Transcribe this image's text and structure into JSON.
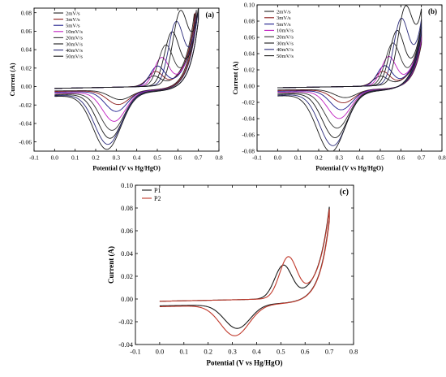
{
  "chart_data": [
    {
      "id": "a",
      "type": "line",
      "panel_label": "(a)",
      "xlabel": "Potential (V vs Hg/HgO)",
      "ylabel": "Current (A)",
      "xlim": [
        -0.1,
        0.8
      ],
      "ylim": [
        -0.07,
        0.085
      ],
      "xticks": [
        "-0.1",
        "0.0",
        "0.1",
        "0.2",
        "0.3",
        "0.4",
        "0.5",
        "0.6",
        "0.7",
        "0.8"
      ],
      "yticks": [
        "-0.06",
        "-0.04",
        "-0.02",
        "0.00",
        "0.02",
        "0.04",
        "0.06",
        "0.08"
      ],
      "grid": false,
      "legend_position": "top-left",
      "series": [
        {
          "name": "2mV/s",
          "color": "#222222",
          "ox_peak": [
            0.48,
            0.011
          ],
          "red_peak": [
            0.32,
            -0.01
          ],
          "end": [
            0.68,
            0.078
          ],
          "anodic_shift": 0.0
        },
        {
          "name": "3mV/s",
          "color": "#8b1a1a",
          "ox_peak": [
            0.49,
            0.016
          ],
          "red_peak": [
            0.31,
            -0.015
          ],
          "end": [
            0.685,
            0.079
          ],
          "anodic_shift": 0.0
        },
        {
          "name": "5mV/s",
          "color": "#1a1a8b",
          "ox_peak": [
            0.5,
            0.022
          ],
          "red_peak": [
            0.3,
            -0.022
          ],
          "end": [
            0.69,
            0.08
          ],
          "anodic_shift": 0.0
        },
        {
          "name": "10mV/s",
          "color": "#c020c0",
          "ox_peak": [
            0.52,
            0.031
          ],
          "red_peak": [
            0.29,
            -0.032
          ],
          "end": [
            0.69,
            0.081
          ],
          "anodic_shift": 0.01
        },
        {
          "name": "20mV/s",
          "color": "#333333",
          "ox_peak": [
            0.54,
            0.044
          ],
          "red_peak": [
            0.28,
            -0.041
          ],
          "end": [
            0.69,
            0.082
          ],
          "anodic_shift": 0.02
        },
        {
          "name": "30mV/s",
          "color": "#1a1a1a",
          "ox_peak": [
            0.57,
            0.057
          ],
          "red_peak": [
            0.27,
            -0.049
          ],
          "end": [
            0.7,
            0.083
          ],
          "anodic_shift": 0.03
        },
        {
          "name": "40mV/s",
          "color": "#2a2a7a",
          "ox_peak": [
            0.59,
            0.066
          ],
          "red_peak": [
            0.26,
            -0.055
          ],
          "end": [
            0.7,
            0.083
          ],
          "anodic_shift": 0.04
        },
        {
          "name": "50mV/s",
          "color": "#1a1a1a",
          "ox_peak": [
            0.61,
            0.074
          ],
          "red_peak": [
            0.255,
            -0.06
          ],
          "end": [
            0.7,
            0.082
          ],
          "anodic_shift": 0.05
        }
      ]
    },
    {
      "id": "b",
      "type": "line",
      "panel_label": "(b)",
      "xlabel": "Potential (V vs Hg/HgO)",
      "ylabel": "Current (A)",
      "xlim": [
        -0.1,
        0.8
      ],
      "ylim": [
        -0.08,
        0.1
      ],
      "xticks": [
        "-0.1",
        "0.0",
        "0.1",
        "0.2",
        "0.3",
        "0.4",
        "0.5",
        "0.6",
        "0.7",
        "0.8"
      ],
      "yticks": [
        "-0.08",
        "-0.06",
        "-0.04",
        "-0.02",
        "0.00",
        "0.02",
        "0.04",
        "0.06",
        "0.08",
        "0.10"
      ],
      "grid": false,
      "legend_position": "top-left",
      "series": [
        {
          "name": "2mV/s",
          "color": "#222222",
          "ox_peak": [
            0.5,
            0.012
          ],
          "red_peak": [
            0.33,
            -0.01
          ],
          "end": [
            0.7,
            0.06
          ],
          "anodic_shift": 0.0
        },
        {
          "name": "3mV/s",
          "color": "#8b1a1a",
          "ox_peak": [
            0.51,
            0.018
          ],
          "red_peak": [
            0.32,
            -0.016
          ],
          "end": [
            0.7,
            0.062
          ],
          "anodic_shift": 0.0
        },
        {
          "name": "5mV/s",
          "color": "#1a1a8b",
          "ox_peak": [
            0.52,
            0.025
          ],
          "red_peak": [
            0.31,
            -0.024
          ],
          "end": [
            0.7,
            0.065
          ],
          "anodic_shift": 0.0
        },
        {
          "name": "10mV/s",
          "color": "#c020c0",
          "ox_peak": [
            0.54,
            0.036
          ],
          "red_peak": [
            0.3,
            -0.034
          ],
          "end": [
            0.7,
            0.068
          ],
          "anodic_shift": 0.01
        },
        {
          "name": "20mV/s",
          "color": "#333333",
          "ox_peak": [
            0.56,
            0.052
          ],
          "red_peak": [
            0.29,
            -0.045
          ],
          "end": [
            0.7,
            0.072
          ],
          "anodic_shift": 0.02
        },
        {
          "name": "30mV/s",
          "color": "#1a1a1a",
          "ox_peak": [
            0.58,
            0.066
          ],
          "red_peak": [
            0.28,
            -0.056
          ],
          "end": [
            0.7,
            0.076
          ],
          "anodic_shift": 0.03
        },
        {
          "name": "40mV/s",
          "color": "#2a2a7a",
          "ox_peak": [
            0.6,
            0.078
          ],
          "red_peak": [
            0.27,
            -0.065
          ],
          "end": [
            0.7,
            0.08
          ],
          "anodic_shift": 0.04
        },
        {
          "name": "50mV/s",
          "color": "#1a1a1a",
          "ox_peak": [
            0.62,
            0.087
          ],
          "red_peak": [
            0.26,
            -0.072
          ],
          "end": [
            0.7,
            0.088
          ],
          "anodic_shift": 0.05
        }
      ]
    },
    {
      "id": "c",
      "type": "line",
      "panel_label": "(c)",
      "xlabel": "Potential (V vs Hg/HgO)",
      "ylabel": "Current (A)",
      "xlim": [
        -0.1,
        0.8
      ],
      "ylim": [
        -0.04,
        0.1
      ],
      "xticks": [
        "-0.1",
        "0.0",
        "0.1",
        "0.2",
        "0.3",
        "0.4",
        "0.5",
        "0.6",
        "0.7",
        "0.8"
      ],
      "yticks": [
        "-0.04",
        "-0.02",
        "0.00",
        "0.02",
        "0.04",
        "0.06",
        "0.08",
        "0.10"
      ],
      "grid": false,
      "legend_position": "top-left",
      "series": [
        {
          "name": "P1",
          "color": "#1a1a1a",
          "ox_peak": [
            0.51,
            0.03
          ],
          "red_peak": [
            0.32,
            -0.021
          ],
          "end": [
            0.7,
            0.08
          ],
          "anodic_shift": 0.0
        },
        {
          "name": "P2",
          "color": "#c0392b",
          "ox_peak": [
            0.53,
            0.037
          ],
          "red_peak": [
            0.31,
            -0.027
          ],
          "end": [
            0.7,
            0.078
          ],
          "anodic_shift": 0.02
        }
      ]
    }
  ]
}
